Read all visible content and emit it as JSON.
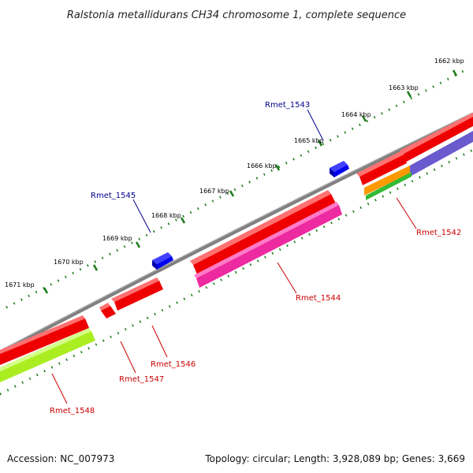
{
  "title": "Ralstonia metallidurans CH34 chromosome 1, complete sequence",
  "ticks": [
    "1662 kbp",
    "1663 kbp",
    "1664 kbp",
    "1665 kbp",
    "1666 kbp",
    "1667 kbp",
    "1668 kbp",
    "1669 kbp",
    "1670 kbp",
    "1671 kbp"
  ],
  "genes": {
    "forward": [
      "Rmet_1543",
      "Rmet_1545"
    ],
    "reverse": [
      "Rmet_1542",
      "Rmet_1544",
      "Rmet_1546",
      "Rmet_1547",
      "Rmet_1548"
    ]
  },
  "colors": {
    "forward_label": "#00008b",
    "reverse_label": "#cc0000",
    "forward_gene": "#0000ee",
    "reverse_gene": "#ee0000",
    "backbone": "#808080",
    "tick": "#1a7a1a",
    "cog_magenta": "#ee2aa0",
    "cog_lime": "#aaee22",
    "cog_purple": "#6a5acd",
    "cog_orange": "#ff9900",
    "cog_green": "#33bb33"
  },
  "footer": {
    "accession": "Accession: NC_007973",
    "summary": "Topology: circular; Length: 3,928,089 bp; Genes: 3,669"
  }
}
